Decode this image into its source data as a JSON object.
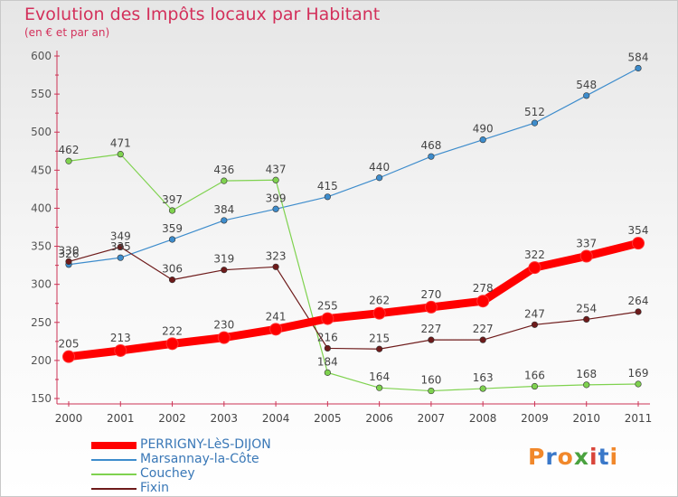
{
  "title": "Evolution des Impôts locaux par Habitant",
  "subtitle": "(en € et par an)",
  "logo": {
    "letters": [
      {
        "ch": "P",
        "color": "#f1882b"
      },
      {
        "ch": "r",
        "color": "#3a78c9"
      },
      {
        "ch": "o",
        "color": "#f1882b"
      },
      {
        "ch": "x",
        "color": "#4aa23f"
      },
      {
        "ch": "i",
        "color": "#d9453a"
      },
      {
        "ch": "t",
        "color": "#3a78c9"
      },
      {
        "ch": "i",
        "color": "#f1882b"
      }
    ]
  },
  "chart_data": {
    "type": "line",
    "x": [
      "2000",
      "2001",
      "2002",
      "2003",
      "2004",
      "2005",
      "2006",
      "2007",
      "2008",
      "2009",
      "2010",
      "2011"
    ],
    "ylim": [
      150,
      600
    ],
    "yticks": [
      150,
      200,
      250,
      300,
      350,
      400,
      450,
      500,
      550,
      600
    ],
    "grid": false,
    "legend_position": "bottom-left",
    "series": [
      {
        "name": "PERRIGNY-LèS-DIJON",
        "color": "#ff0000",
        "emphasis": true,
        "values": [
          205,
          213,
          222,
          230,
          241,
          255,
          262,
          270,
          278,
          322,
          337,
          354
        ]
      },
      {
        "name": "Marsannay-la-Côte",
        "color": "#3d8ccc",
        "values": [
          326,
          335,
          359,
          384,
          399,
          415,
          440,
          468,
          490,
          512,
          548,
          584
        ]
      },
      {
        "name": "Couchey",
        "color": "#7fd24f",
        "values": [
          462,
          471,
          397,
          436,
          437,
          184,
          164,
          160,
          163,
          166,
          168,
          169
        ]
      },
      {
        "name": "Fixin",
        "color": "#6e1b1b",
        "values": [
          330,
          349,
          306,
          319,
          323,
          216,
          215,
          227,
          227,
          247,
          254,
          264
        ]
      }
    ]
  }
}
